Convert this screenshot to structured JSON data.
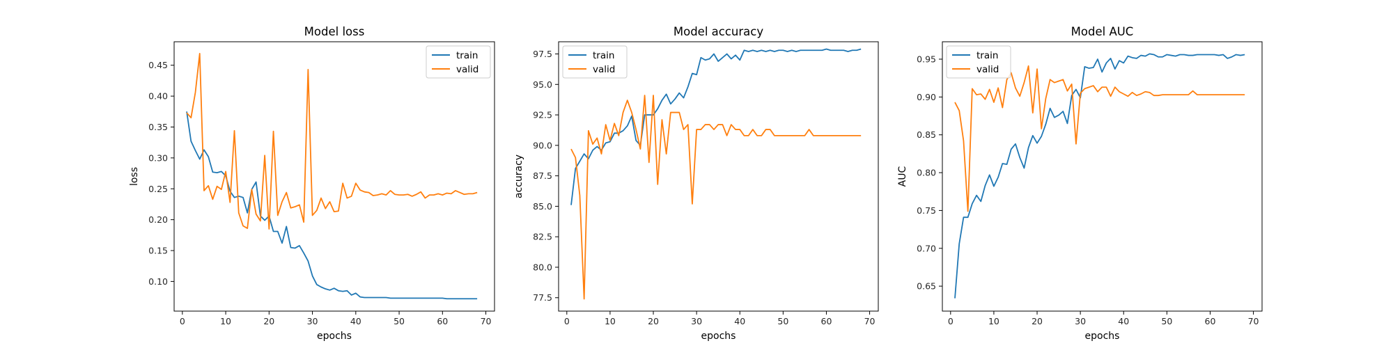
{
  "chart_data": [
    {
      "type": "line",
      "title": "Model loss",
      "xlabel": "epochs",
      "ylabel": "loss",
      "xlim": [
        -1.9,
        72.0
      ],
      "ylim": [
        0.052,
        0.488
      ],
      "xticks": [
        0,
        10,
        20,
        30,
        40,
        50,
        60,
        70
      ],
      "yticks": [
        0.1,
        0.15,
        0.2,
        0.25,
        0.3,
        0.35,
        0.4,
        0.45
      ],
      "ytick_labels": [
        "0.10",
        "0.15",
        "0.20",
        "0.25",
        "0.30",
        "0.35",
        "0.40",
        "0.45"
      ],
      "legend_loc": "upper right",
      "x": [
        1,
        2,
        3,
        4,
        5,
        6,
        7,
        8,
        9,
        10,
        11,
        12,
        13,
        14,
        15,
        16,
        17,
        18,
        19,
        20,
        21,
        22,
        23,
        24,
        25,
        26,
        27,
        28,
        29,
        30,
        31,
        32,
        33,
        34,
        35,
        36,
        37,
        38,
        39,
        40,
        41,
        42,
        43,
        44,
        45,
        46,
        47,
        48,
        49,
        50,
        51,
        52,
        53,
        54,
        55,
        56,
        57,
        58,
        59,
        60,
        61,
        62,
        63,
        64,
        65,
        66,
        67,
        68
      ],
      "series": [
        {
          "name": "train",
          "color": "#1f77b4",
          "values": [
            0.375,
            0.327,
            0.312,
            0.298,
            0.313,
            0.302,
            0.277,
            0.276,
            0.278,
            0.271,
            0.246,
            0.236,
            0.238,
            0.236,
            0.211,
            0.249,
            0.261,
            0.206,
            0.199,
            0.206,
            0.181,
            0.181,
            0.162,
            0.189,
            0.155,
            0.154,
            0.158,
            0.146,
            0.133,
            0.109,
            0.095,
            0.091,
            0.088,
            0.086,
            0.089,
            0.085,
            0.084,
            0.085,
            0.078,
            0.081,
            0.075,
            0.074,
            0.074,
            0.074,
            0.074,
            0.074,
            0.074,
            0.073,
            0.073,
            0.073,
            0.073,
            0.073,
            0.073,
            0.073,
            0.073,
            0.073,
            0.073,
            0.073,
            0.073,
            0.073,
            0.072,
            0.072,
            0.072,
            0.072,
            0.072,
            0.072,
            0.072,
            0.072
          ]
        },
        {
          "name": "valid",
          "color": "#ff7f0e",
          "values": [
            0.373,
            0.365,
            0.406,
            0.469,
            0.247,
            0.255,
            0.233,
            0.254,
            0.249,
            0.278,
            0.228,
            0.344,
            0.211,
            0.19,
            0.186,
            0.249,
            0.209,
            0.198,
            0.304,
            0.185,
            0.343,
            0.207,
            0.229,
            0.244,
            0.219,
            0.221,
            0.224,
            0.196,
            0.443,
            0.207,
            0.215,
            0.235,
            0.218,
            0.229,
            0.213,
            0.214,
            0.259,
            0.235,
            0.238,
            0.259,
            0.248,
            0.245,
            0.244,
            0.239,
            0.24,
            0.242,
            0.24,
            0.247,
            0.241,
            0.24,
            0.24,
            0.241,
            0.238,
            0.241,
            0.245,
            0.235,
            0.24,
            0.24,
            0.242,
            0.24,
            0.243,
            0.242,
            0.247,
            0.244,
            0.241,
            0.242,
            0.242,
            0.244
          ]
        }
      ]
    },
    {
      "type": "line",
      "title": "Model accuracy",
      "xlabel": "epochs",
      "ylabel": "accuracy",
      "xlim": [
        -1.9,
        72.0
      ],
      "ylim": [
        76.4,
        98.5
      ],
      "xticks": [
        0,
        10,
        20,
        30,
        40,
        50,
        60,
        70
      ],
      "yticks": [
        77.5,
        80.0,
        82.5,
        85.0,
        87.5,
        90.0,
        92.5,
        95.0,
        97.5
      ],
      "ytick_labels": [
        "77.5",
        "80.0",
        "82.5",
        "85.0",
        "87.5",
        "90.0",
        "92.5",
        "95.0",
        "97.5"
      ],
      "legend_loc": "upper left",
      "x": [
        1,
        2,
        3,
        4,
        5,
        6,
        7,
        8,
        9,
        10,
        11,
        12,
        13,
        14,
        15,
        16,
        17,
        18,
        19,
        20,
        21,
        22,
        23,
        24,
        25,
        26,
        27,
        28,
        29,
        30,
        31,
        32,
        33,
        34,
        35,
        36,
        37,
        38,
        39,
        40,
        41,
        42,
        43,
        44,
        45,
        46,
        47,
        48,
        49,
        50,
        51,
        52,
        53,
        54,
        55,
        56,
        57,
        58,
        59,
        60,
        61,
        62,
        63,
        64,
        65,
        66,
        67,
        68
      ],
      "series": [
        {
          "name": "train",
          "color": "#1f77b4",
          "values": [
            85.1,
            88.1,
            88.7,
            89.3,
            88.9,
            89.6,
            89.9,
            89.6,
            90.2,
            90.3,
            91.0,
            91.0,
            91.2,
            91.6,
            92.4,
            90.4,
            90.0,
            92.5,
            92.5,
            92.5,
            93.0,
            93.7,
            94.2,
            93.4,
            93.8,
            94.3,
            93.9,
            94.8,
            95.9,
            95.8,
            97.2,
            97.0,
            97.1,
            97.5,
            96.9,
            97.2,
            97.5,
            97.1,
            97.4,
            97.0,
            97.8,
            97.7,
            97.8,
            97.7,
            97.8,
            97.7,
            97.8,
            97.7,
            97.8,
            97.8,
            97.7,
            97.8,
            97.7,
            97.8,
            97.8,
            97.8,
            97.8,
            97.8,
            97.8,
            97.9,
            97.8,
            97.8,
            97.8,
            97.8,
            97.7,
            97.8,
            97.8,
            97.9
          ]
        },
        {
          "name": "valid",
          "color": "#ff7f0e",
          "values": [
            89.7,
            89.0,
            85.9,
            77.4,
            91.2,
            90.1,
            90.6,
            89.3,
            91.7,
            90.4,
            91.8,
            90.8,
            92.7,
            93.7,
            92.7,
            91.3,
            89.7,
            94.1,
            88.6,
            94.1,
            86.8,
            92.1,
            89.3,
            92.7,
            92.7,
            92.7,
            91.3,
            91.7,
            85.2,
            91.3,
            91.3,
            91.7,
            91.7,
            91.3,
            91.7,
            91.7,
            90.8,
            91.7,
            91.3,
            91.3,
            90.8,
            90.8,
            91.3,
            90.8,
            90.8,
            91.3,
            91.3,
            90.8,
            90.8,
            90.8,
            90.8,
            90.8,
            90.8,
            90.8,
            90.8,
            91.3,
            90.8,
            90.8,
            90.8,
            90.8,
            90.8,
            90.8,
            90.8,
            90.8,
            90.8,
            90.8,
            90.8,
            90.8
          ]
        }
      ]
    },
    {
      "type": "line",
      "title": "Model AUC",
      "xlabel": "epochs",
      "ylabel": "AUC",
      "xlim": [
        -1.9,
        72.0
      ],
      "ylim": [
        0.617,
        0.973
      ],
      "xticks": [
        0,
        10,
        20,
        30,
        40,
        50,
        60,
        70
      ],
      "yticks": [
        0.65,
        0.7,
        0.75,
        0.8,
        0.85,
        0.9,
        0.95
      ],
      "ytick_labels": [
        "0.65",
        "0.70",
        "0.75",
        "0.80",
        "0.85",
        "0.90",
        "0.95"
      ],
      "legend_loc": "upper left",
      "x": [
        1,
        2,
        3,
        4,
        5,
        6,
        7,
        8,
        9,
        10,
        11,
        12,
        13,
        14,
        15,
        16,
        17,
        18,
        19,
        20,
        21,
        22,
        23,
        24,
        25,
        26,
        27,
        28,
        29,
        30,
        31,
        32,
        33,
        34,
        35,
        36,
        37,
        38,
        39,
        40,
        41,
        42,
        43,
        44,
        45,
        46,
        47,
        48,
        49,
        50,
        51,
        52,
        53,
        54,
        55,
        56,
        57,
        58,
        59,
        60,
        61,
        62,
        63,
        64,
        65,
        66,
        67,
        68
      ],
      "series": [
        {
          "name": "train",
          "color": "#1f77b4",
          "values": [
            0.634,
            0.706,
            0.741,
            0.741,
            0.759,
            0.77,
            0.762,
            0.783,
            0.797,
            0.782,
            0.794,
            0.812,
            0.811,
            0.831,
            0.838,
            0.82,
            0.806,
            0.833,
            0.849,
            0.839,
            0.848,
            0.864,
            0.885,
            0.873,
            0.876,
            0.881,
            0.865,
            0.902,
            0.91,
            0.899,
            0.94,
            0.938,
            0.939,
            0.95,
            0.933,
            0.945,
            0.951,
            0.937,
            0.948,
            0.945,
            0.954,
            0.952,
            0.951,
            0.955,
            0.954,
            0.957,
            0.956,
            0.953,
            0.953,
            0.956,
            0.955,
            0.954,
            0.956,
            0.956,
            0.955,
            0.955,
            0.956,
            0.956,
            0.956,
            0.956,
            0.956,
            0.955,
            0.956,
            0.951,
            0.953,
            0.956,
            0.955,
            0.956
          ]
        },
        {
          "name": "valid",
          "color": "#ff7f0e",
          "values": [
            0.893,
            0.882,
            0.842,
            0.749,
            0.911,
            0.903,
            0.904,
            0.897,
            0.91,
            0.893,
            0.912,
            0.886,
            0.923,
            0.932,
            0.912,
            0.901,
            0.919,
            0.941,
            0.879,
            0.937,
            0.858,
            0.898,
            0.923,
            0.919,
            0.921,
            0.923,
            0.908,
            0.917,
            0.838,
            0.905,
            0.911,
            0.913,
            0.915,
            0.907,
            0.913,
            0.913,
            0.901,
            0.913,
            0.907,
            0.904,
            0.901,
            0.906,
            0.902,
            0.904,
            0.907,
            0.906,
            0.902,
            0.902,
            0.903,
            0.903,
            0.903,
            0.903,
            0.903,
            0.903,
            0.903,
            0.908,
            0.903,
            0.903,
            0.903,
            0.903,
            0.903,
            0.903,
            0.903,
            0.903,
            0.903,
            0.903,
            0.903,
            0.903
          ]
        }
      ]
    }
  ]
}
